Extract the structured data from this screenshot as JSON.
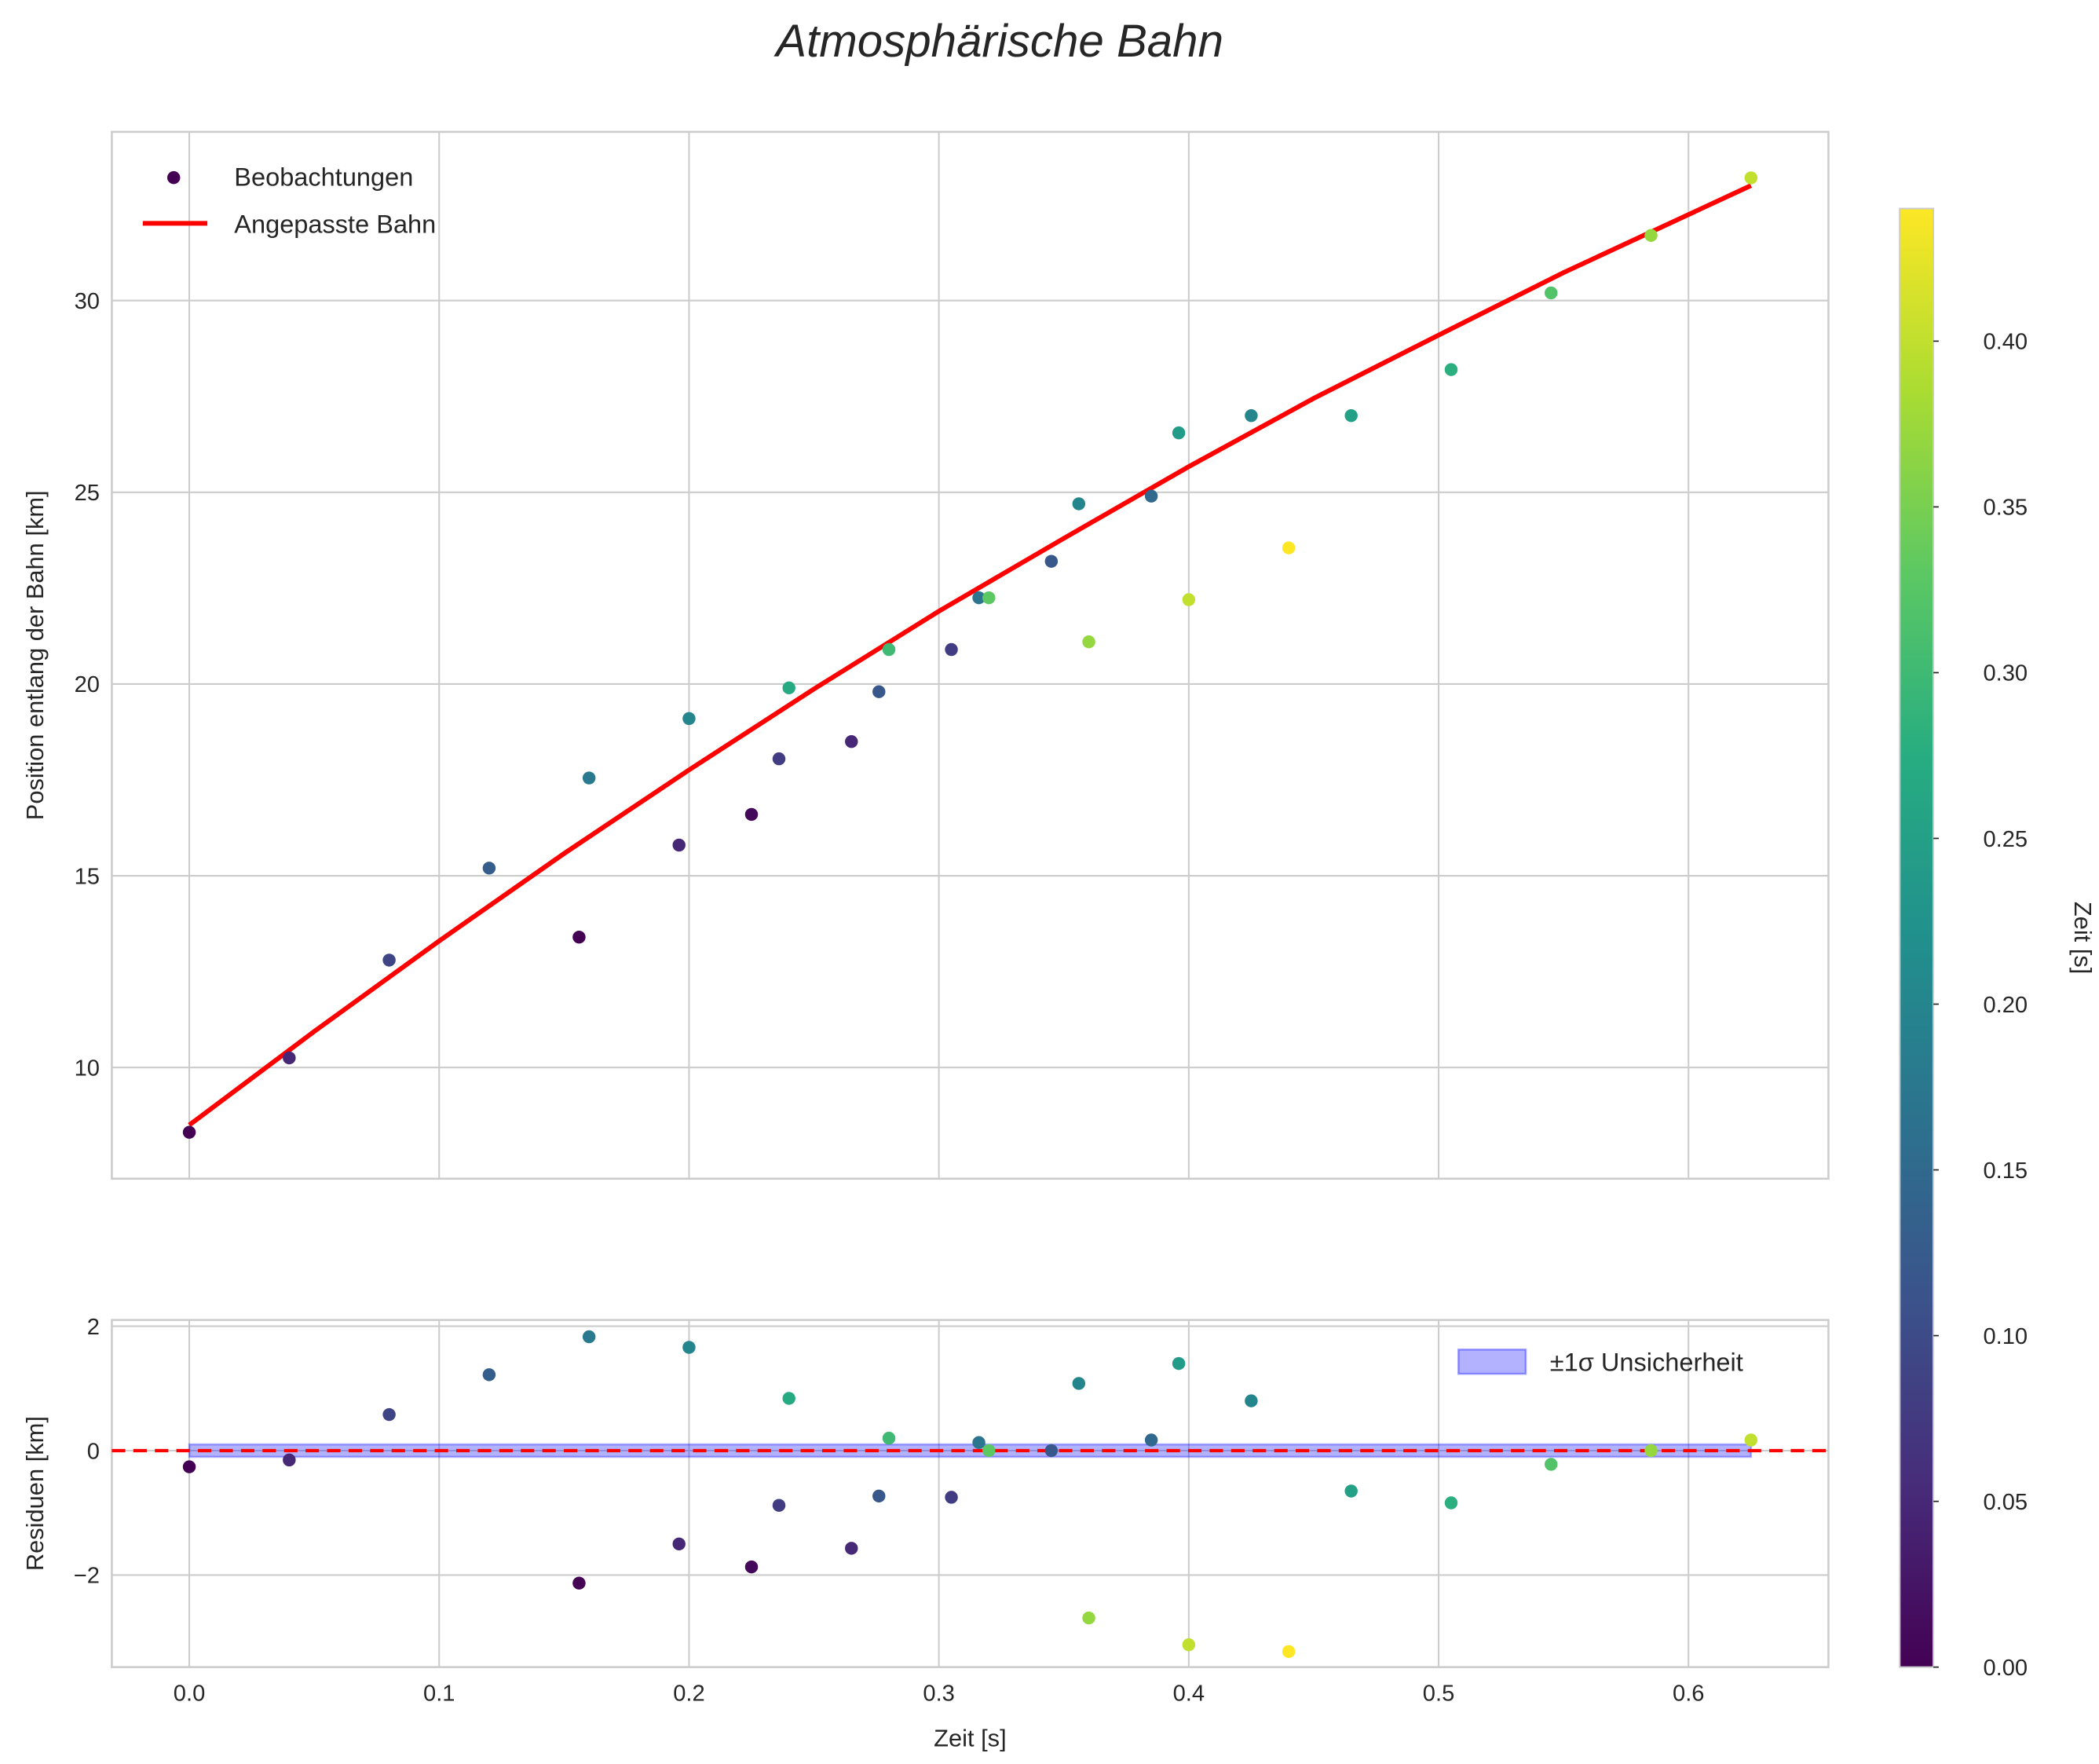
{
  "chart_data": [
    {
      "type": "scatter",
      "title": "Atmosphärische Bahn",
      "xlabel": "",
      "ylabel": "Position entlang der Bahn [km]",
      "xlim": [
        -0.031,
        0.656
      ],
      "ylim": [
        7.1,
        34.4
      ],
      "xticks": [
        "0.0",
        "0.1",
        "0.2",
        "0.3",
        "0.4",
        "0.5",
        "0.6"
      ],
      "xtick_values": [
        0,
        0.1,
        0.2,
        0.3,
        0.4,
        0.5,
        0.6
      ],
      "yticks": [
        "10",
        "15",
        "20",
        "25",
        "30"
      ],
      "ytick_values": [
        10,
        15,
        20,
        25,
        30
      ],
      "grid": true,
      "legend": {
        "placement": "top-left",
        "entries": [
          "Beobachtungen",
          "Angepasste Bahn"
        ]
      },
      "series": [
        {
          "name": "Beobachtungen",
          "kind": "scatter",
          "x": [
            0,
            0.04,
            0.08,
            0.12,
            0.16,
            0.156,
            0.196,
            0.2,
            0.225,
            0.236,
            0.24,
            0.265,
            0.276,
            0.28,
            0.305,
            0.316,
            0.32,
            0.345,
            0.356,
            0.36,
            0.385,
            0.396,
            0.4,
            0.425,
            0.44,
            0.465,
            0.505,
            0.545,
            0.585,
            0.625
          ],
          "y": [
            8.31,
            10.25,
            12.8,
            15.2,
            17.55,
            13.4,
            15.8,
            19.1,
            16.6,
            18.05,
            19.9,
            18.5,
            19.8,
            20.9,
            20.9,
            22.25,
            22.25,
            23.2,
            24.7,
            21.1,
            24.9,
            26.55,
            22.2,
            27.0,
            23.55,
            27.0,
            28.2,
            30.2,
            31.7,
            33.2
          ],
          "color_values": [
            0.0,
            0.05,
            0.09,
            0.13,
            0.18,
            0.0,
            0.05,
            0.2,
            0.01,
            0.08,
            0.27,
            0.05,
            0.12,
            0.3,
            0.08,
            0.17,
            0.33,
            0.12,
            0.2,
            0.37,
            0.15,
            0.24,
            0.4,
            0.2,
            0.44,
            0.25,
            0.28,
            0.32,
            0.37,
            0.4
          ]
        },
        {
          "name": "Angepasste Bahn",
          "kind": "line",
          "color": "#ff0000",
          "x": [
            0,
            0.05,
            0.1,
            0.15,
            0.2,
            0.25,
            0.3,
            0.35,
            0.4,
            0.45,
            0.5,
            0.55,
            0.625
          ],
          "y": [
            8.5,
            10.94,
            13.3,
            15.58,
            17.76,
            19.87,
            21.9,
            23.8,
            25.67,
            27.45,
            29.1,
            30.73,
            33.0
          ]
        }
      ]
    },
    {
      "type": "scatter",
      "xlabel": "Zeit [s]",
      "ylabel": "Residuen [km]",
      "xlim": [
        -0.031,
        0.656
      ],
      "ylim": [
        -3.48,
        2.1
      ],
      "xticks": [
        "0.0",
        "0.1",
        "0.2",
        "0.3",
        "0.4",
        "0.5",
        "0.6"
      ],
      "xtick_values": [
        0,
        0.1,
        0.2,
        0.3,
        0.4,
        0.5,
        0.6
      ],
      "yticks": [
        "−2",
        "0",
        "2"
      ],
      "ytick_values": [
        -2,
        0,
        2
      ],
      "grid": true,
      "legend": {
        "placement": "top-right",
        "entries": [
          "±1σ Unsicherheit"
        ]
      },
      "reference_line": {
        "y": 0,
        "style": "dashed",
        "color": "#ff0000"
      },
      "band": {
        "name": "±1σ Unsicherheit",
        "sigma": 0.1,
        "color": "#0000ff",
        "alpha": 0.3
      },
      "residuals": [
        -0.26,
        -0.15,
        0.58,
        1.22,
        1.83,
        -2.13,
        -1.5,
        1.66,
        -1.87,
        -0.88,
        0.84,
        -1.57,
        -0.73,
        0.2,
        -0.75,
        0.13,
        0.0,
        0.0,
        1.08,
        -2.69,
        0.17,
        1.4,
        -3.12,
        0.8,
        -3.23,
        -0.65,
        -0.84,
        -0.22,
        0.0,
        0.17
      ]
    }
  ],
  "colorbar": {
    "label": "Zeit [s]",
    "colormap": "viridis",
    "range": [
      0,
      0.44
    ],
    "ticks": [
      "0.00",
      "0.05",
      "0.10",
      "0.15",
      "0.20",
      "0.25",
      "0.30",
      "0.35",
      "0.40"
    ],
    "tick_values": [
      0,
      0.05,
      0.1,
      0.15,
      0.2,
      0.25,
      0.3,
      0.35,
      0.4
    ]
  }
}
